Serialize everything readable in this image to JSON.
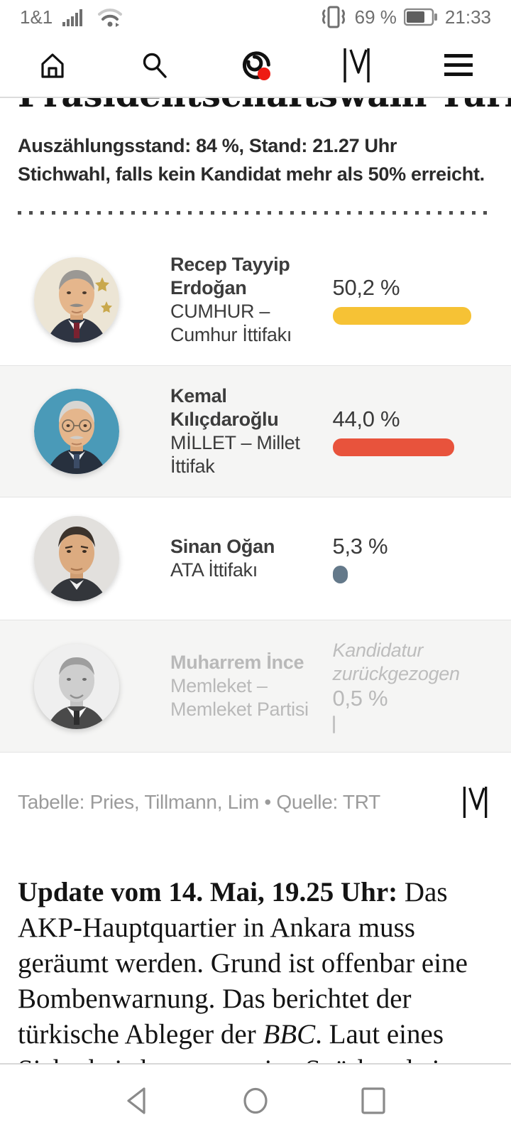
{
  "status_bar": {
    "carrier": "1&1",
    "battery": "69 %",
    "time": "21:33"
  },
  "nav": {
    "icons": [
      "home-icon",
      "search-icon",
      "live-ticker-icon",
      "merkur-logo",
      "menu-icon"
    ]
  },
  "headline": "Präsidentschaftswahl Türkei",
  "standings": {
    "line1": "Auszählungsstand: 84 %, Stand: 21.27 Uhr",
    "line2": "Stichwahl, falls kein Kandidat mehr als 50% erreicht."
  },
  "candidates": [
    {
      "name": "Recep Tayyip Erdoğan",
      "party": "CUMHUR – Cumhur İttifakı",
      "pct_label": "50,2 %",
      "pct": 50.2,
      "bar_color": "#f6c235",
      "withdrawn": false
    },
    {
      "name": "Kemal Kılıçdaroğlu",
      "party": "MİLLET – Millet İttifak",
      "pct_label": "44,0 %",
      "pct": 44.0,
      "bar_color": "#e8533c",
      "withdrawn": false
    },
    {
      "name": "Sinan Oğan",
      "party": "ATA İttifakı",
      "pct_label": "5,3 %",
      "pct": 5.3,
      "bar_color": "#64798a",
      "withdrawn": false
    },
    {
      "name": "Muharrem İnce",
      "party": "Memleket – Memleket Partisi",
      "pct_label": "0,5 %",
      "pct": 0.5,
      "bar_color": "#c4c4c4",
      "withdrawn": true,
      "note": "Kandidatur zurückgezogen"
    }
  ],
  "table_footer": {
    "credit": "Tabelle: Pries, Tillmann, Lim • Quelle: TRT"
  },
  "article": {
    "lead": "Update vom 14. Mai, 19.25 Uhr:",
    "body_before": " Das AKP-Hauptquartier in Ankara muss geräumt werden. Grund ist offenbar eine Bombenwarnung. Das berichtet der türkische Ableger der ",
    "italic": "BBC",
    "body_after": ". Laut eines Sicherheitsbeamten seien Spürhunde im"
  },
  "chart_data": {
    "type": "bar",
    "title": "Präsidentschaftswahl Türkei",
    "subtitle": "Auszählungsstand: 84 %, Stand: 21.27 Uhr",
    "categories": [
      "Recep Tayyip Erdoğan",
      "Kemal Kılıçdaroğlu",
      "Sinan Oğan",
      "Muharrem İnce"
    ],
    "values": [
      50.2,
      44.0,
      5.3,
      0.5
    ],
    "unit": "%",
    "bar_colors": [
      "#f6c235",
      "#e8533c",
      "#64798a",
      "#c4c4c4"
    ],
    "annotations": [
      "",
      "",
      "",
      "Kandidatur zurückgezogen"
    ],
    "source": "Quelle: TRT"
  }
}
